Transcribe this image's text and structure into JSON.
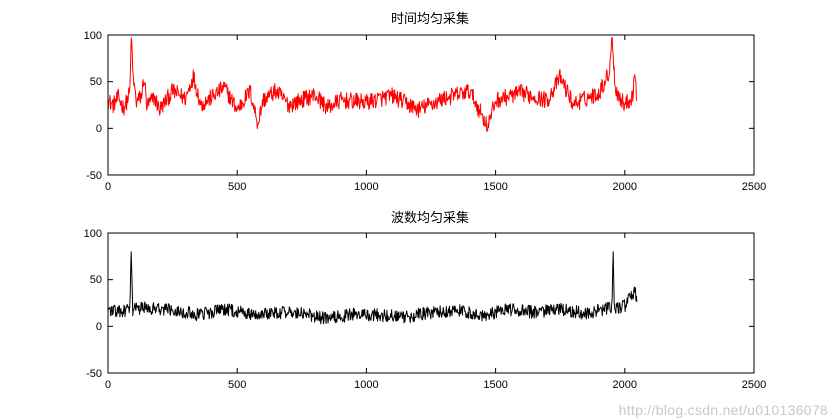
{
  "watermark": "http://blog.csdn.net/u010136078",
  "chart_data": [
    {
      "type": "line",
      "title": "时间均匀采集",
      "xlim": [
        0,
        2500
      ],
      "ylim": [
        -50,
        100
      ],
      "xticks": [
        "0",
        "500",
        "1000",
        "1500",
        "2000",
        "2500"
      ],
      "yticks": [
        "-50",
        "0",
        "50",
        "100"
      ],
      "grid": false,
      "series": [
        {
          "color": "#ff0000",
          "x_range": [
            0,
            2047
          ],
          "points": [
            [
              0,
              30
            ],
            [
              20,
              25
            ],
            [
              40,
              33
            ],
            [
              60,
              22
            ],
            [
              75,
              30
            ],
            [
              85,
              40
            ],
            [
              90,
              97
            ],
            [
              97,
              55
            ],
            [
              110,
              28
            ],
            [
              130,
              35
            ],
            [
              140,
              55
            ],
            [
              150,
              24
            ],
            [
              180,
              33
            ],
            [
              200,
              20
            ],
            [
              250,
              40
            ],
            [
              300,
              32
            ],
            [
              330,
              56
            ],
            [
              360,
              25
            ],
            [
              400,
              33
            ],
            [
              450,
              44
            ],
            [
              500,
              20
            ],
            [
              550,
              40
            ],
            [
              580,
              5
            ],
            [
              600,
              30
            ],
            [
              650,
              40
            ],
            [
              700,
              25
            ],
            [
              800,
              36
            ],
            [
              850,
              22
            ],
            [
              900,
              30
            ],
            [
              1000,
              28
            ],
            [
              1100,
              35
            ],
            [
              1200,
              20
            ],
            [
              1300,
              32
            ],
            [
              1400,
              40
            ],
            [
              1470,
              2
            ],
            [
              1500,
              30
            ],
            [
              1600,
              38
            ],
            [
              1700,
              30
            ],
            [
              1750,
              55
            ],
            [
              1800,
              26
            ],
            [
              1900,
              38
            ],
            [
              1940,
              60
            ],
            [
              1950,
              97
            ],
            [
              1965,
              40
            ],
            [
              2000,
              25
            ],
            [
              2030,
              35
            ],
            [
              2040,
              60
            ],
            [
              2047,
              30
            ]
          ],
          "noise_amp": 9
        }
      ]
    },
    {
      "type": "line",
      "title": "波数均匀采集",
      "xlim": [
        0,
        2500
      ],
      "ylim": [
        -50,
        100
      ],
      "xticks": [
        "0",
        "500",
        "1000",
        "1500",
        "2000",
        "2500"
      ],
      "yticks": [
        "-50",
        "0",
        "50",
        "100"
      ],
      "grid": false,
      "series": [
        {
          "color": "#000000",
          "x_range": [
            0,
            2047
          ],
          "points": [
            [
              0,
              18
            ],
            [
              50,
              15
            ],
            [
              85,
              18
            ],
            [
              90,
              80
            ],
            [
              95,
              18
            ],
            [
              150,
              20
            ],
            [
              250,
              18
            ],
            [
              350,
              12
            ],
            [
              450,
              18
            ],
            [
              550,
              13
            ],
            [
              650,
              15
            ],
            [
              750,
              14
            ],
            [
              850,
              8
            ],
            [
              950,
              13
            ],
            [
              1050,
              12
            ],
            [
              1150,
              10
            ],
            [
              1250,
              15
            ],
            [
              1350,
              17
            ],
            [
              1450,
              12
            ],
            [
              1550,
              18
            ],
            [
              1650,
              15
            ],
            [
              1750,
              18
            ],
            [
              1850,
              14
            ],
            [
              1950,
              20
            ],
            [
              1955,
              80
            ],
            [
              1960,
              18
            ],
            [
              2000,
              22
            ],
            [
              2040,
              38
            ],
            [
              2047,
              22
            ]
          ],
          "noise_amp": 7
        }
      ]
    }
  ]
}
